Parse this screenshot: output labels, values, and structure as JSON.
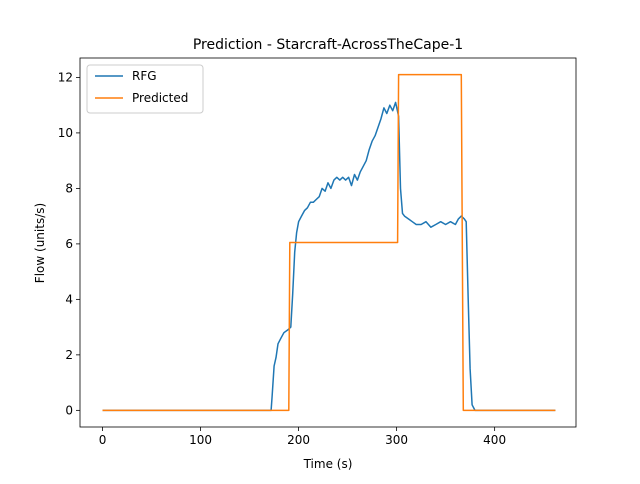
{
  "chart_data": {
    "type": "line",
    "title": "Prediction - Starcraft-AcrossTheCape-1",
    "xlabel": "Time (s)",
    "ylabel": "Flow (units/s)",
    "xlim": [
      -23,
      483
    ],
    "ylim": [
      -0.6,
      12.7
    ],
    "xticks": [
      0,
      100,
      200,
      300,
      400
    ],
    "yticks": [
      0,
      2,
      4,
      6,
      8,
      10,
      12
    ],
    "grid": false,
    "legend_position": "upper-left",
    "series": [
      {
        "name": "RFG",
        "color": "#1f77b4",
        "points": [
          [
            0,
            0
          ],
          [
            172,
            0
          ],
          [
            173,
            0.5
          ],
          [
            175,
            1.6
          ],
          [
            177,
            1.9
          ],
          [
            179,
            2.4
          ],
          [
            182,
            2.6
          ],
          [
            185,
            2.8
          ],
          [
            189,
            2.9
          ],
          [
            192,
            3.0
          ],
          [
            194,
            4.2
          ],
          [
            196,
            5.7
          ],
          [
            198,
            6.4
          ],
          [
            200,
            6.8
          ],
          [
            203,
            7.0
          ],
          [
            206,
            7.2
          ],
          [
            209,
            7.3
          ],
          [
            212,
            7.5
          ],
          [
            215,
            7.5
          ],
          [
            218,
            7.6
          ],
          [
            221,
            7.7
          ],
          [
            224,
            8.0
          ],
          [
            227,
            7.9
          ],
          [
            230,
            8.2
          ],
          [
            233,
            8.0
          ],
          [
            236,
            8.3
          ],
          [
            239,
            8.4
          ],
          [
            242,
            8.3
          ],
          [
            245,
            8.4
          ],
          [
            248,
            8.3
          ],
          [
            251,
            8.4
          ],
          [
            254,
            8.1
          ],
          [
            257,
            8.5
          ],
          [
            260,
            8.3
          ],
          [
            263,
            8.6
          ],
          [
            266,
            8.8
          ],
          [
            269,
            9.0
          ],
          [
            272,
            9.4
          ],
          [
            275,
            9.7
          ],
          [
            278,
            9.9
          ],
          [
            281,
            10.2
          ],
          [
            284,
            10.5
          ],
          [
            287,
            10.9
          ],
          [
            290,
            10.7
          ],
          [
            293,
            11.0
          ],
          [
            296,
            10.8
          ],
          [
            299,
            11.1
          ],
          [
            302,
            10.6
          ],
          [
            304,
            8.0
          ],
          [
            306,
            7.1
          ],
          [
            308,
            7.0
          ],
          [
            312,
            6.9
          ],
          [
            316,
            6.8
          ],
          [
            320,
            6.7
          ],
          [
            325,
            6.7
          ],
          [
            330,
            6.8
          ],
          [
            335,
            6.6
          ],
          [
            340,
            6.7
          ],
          [
            345,
            6.8
          ],
          [
            350,
            6.7
          ],
          [
            355,
            6.8
          ],
          [
            360,
            6.7
          ],
          [
            363,
            6.9
          ],
          [
            366,
            7.0
          ],
          [
            369,
            6.9
          ],
          [
            371,
            6.8
          ],
          [
            373,
            4.0
          ],
          [
            375,
            1.5
          ],
          [
            377,
            0.2
          ],
          [
            380,
            0
          ],
          [
            462,
            0
          ]
        ]
      },
      {
        "name": "Predicted",
        "color": "#ff7f0e",
        "points": [
          [
            0,
            0
          ],
          [
            190,
            0
          ],
          [
            191,
            6.05
          ],
          [
            301,
            6.05
          ],
          [
            302,
            12.1
          ],
          [
            366,
            12.1
          ],
          [
            367,
            6.0
          ],
          [
            368,
            0
          ],
          [
            462,
            0
          ]
        ]
      }
    ]
  }
}
